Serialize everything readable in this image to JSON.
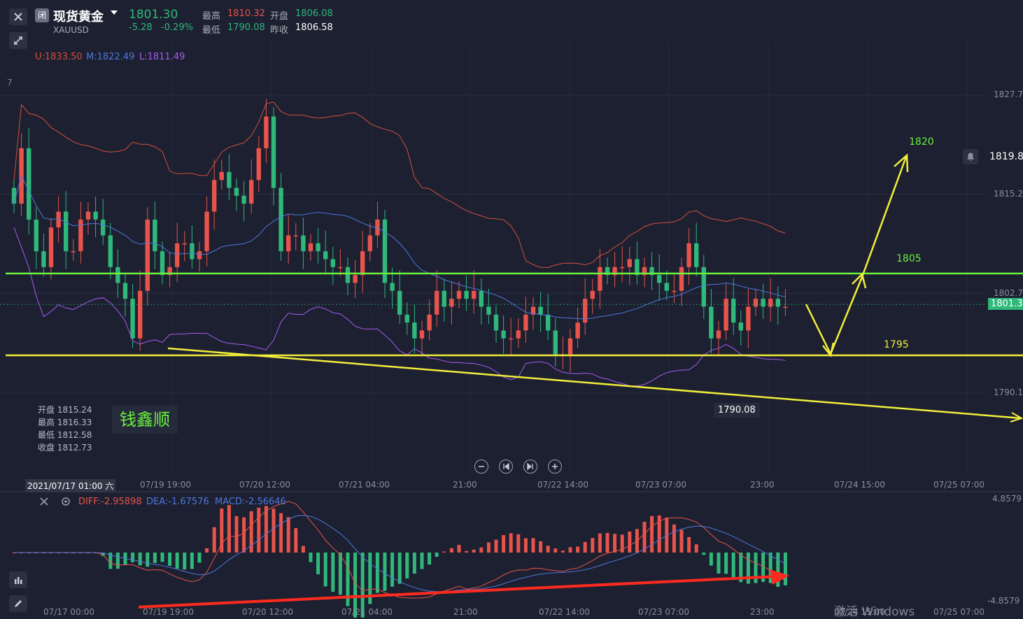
{
  "header": {
    "close_icon": "close-icon",
    "market_badge": "闭",
    "symbol_name": "现货黄金",
    "symbol_code": "XAUUSD",
    "last_price": "1801.30",
    "change": "-5.28",
    "change_pct": "-0.29%",
    "high_label": "最高",
    "high_value": "1810.32",
    "open_label": "开盘",
    "open_value": "1806.08",
    "low_label": "最低",
    "low_value": "1790.08",
    "prev_close_label": "昨收",
    "prev_close_value": "1806.58",
    "collapse_icon": "collapse-arrows-icon"
  },
  "boll": {
    "upper": "U:1833.50",
    "mid": "M:1822.49",
    "lower": "L:1811.49"
  },
  "price_axis": {
    "ticks": [
      {
        "label": "1827.7",
        "value": 1827.7
      },
      {
        "label": "1815.2",
        "value": 1815.2
      },
      {
        "label": "1802.7",
        "value": 1802.7
      },
      {
        "label": "1790.1",
        "value": 1790.1
      }
    ],
    "top_partial": "7",
    "alert_price": "1819.84",
    "current_price": "1801.30"
  },
  "ohlc_box": {
    "open": "开盘 1815.24",
    "high": "最高 1816.33",
    "low": "最低 1812.58",
    "close": "收盘 1812.73"
  },
  "watermark": "钱鑫顺",
  "annotations": {
    "target_1820": "1820",
    "level_1805": "1805",
    "level_1795": "1795",
    "low_marker": "1790.08"
  },
  "nav_buttons": [
    "zoom-out-icon",
    "step-back-icon",
    "step-forward-icon",
    "zoom-in-icon"
  ],
  "time_axis": {
    "crosshair_time": "2021/07/17 01:00 六",
    "labels": [
      "07/19 19:00",
      "07/20 12:00",
      "07/21 04:00",
      "21:00",
      "07/22 14:00",
      "07/23 07:00",
      "23:00",
      "07/24 15:00",
      "07/25 07:00"
    ]
  },
  "macd": {
    "diff": "DIFF:-2.95898",
    "dea": "DEA:-1.67576",
    "macd": "MACD:-2.56646",
    "axis_top": "4.8579",
    "axis_bottom": "-4.8579",
    "time_labels": [
      "07/17 00:00",
      "07/19 19:00",
      "07/20 12:00",
      "07/21 04:00",
      "21:00",
      "07/22 14:00",
      "07/23 07:00",
      "23:00",
      "07/24 15:00",
      "07/25 07:00"
    ]
  },
  "system_watermark": "激活 Windows",
  "colors": {
    "background": "#1c2030",
    "up": "#e8534b",
    "down": "#2fb87a",
    "boll_upper": "#d2503f",
    "boll_mid": "#4f78e0",
    "boll_lower": "#a75bf2",
    "annot_yellow": "#f2ee3a",
    "annot_green": "#6af23c",
    "red_arrow": "#ff2a1f",
    "price_tag": "#2fb87a"
  },
  "chart_data": {
    "type": "candlestick",
    "interval": "1h",
    "y_range": [
      1786,
      1832
    ],
    "candles_close": [
      1814,
      1821,
      1812,
      1808,
      1806,
      1811,
      1813,
      1808,
      1808,
      1812,
      1813,
      1812,
      1810,
      1806,
      1804,
      1802,
      1797,
      1803,
      1812,
      1808,
      1805,
      1806,
      1809,
      1809,
      1807,
      1808,
      1813,
      1817,
      1818,
      1816,
      1815,
      1814,
      1817,
      1821,
      1825,
      1816,
      1808,
      1810,
      1810,
      1808,
      1809,
      1808,
      1807,
      1806,
      1806,
      1804,
      1805,
      1808,
      1810,
      1812,
      1804,
      1803,
      1800,
      1799,
      1797,
      1798,
      1800,
      1803,
      1801,
      1802,
      1803,
      1802,
      1803,
      1801,
      1800,
      1798,
      1797,
      1797,
      1798,
      1800,
      1801,
      1800,
      1798,
      1795,
      1795,
      1797,
      1799,
      1802,
      1803,
      1806,
      1805,
      1806,
      1806,
      1807,
      1805,
      1806,
      1805,
      1804,
      1803,
      1803,
      1806,
      1809,
      1806,
      1801,
      1797,
      1798,
      1802,
      1799,
      1798,
      1801,
      1802,
      1801,
      1802,
      1801,
      1801
    ],
    "alert_level": 1819.84,
    "current_price": 1801.3,
    "annotated_low": 1790.08
  }
}
